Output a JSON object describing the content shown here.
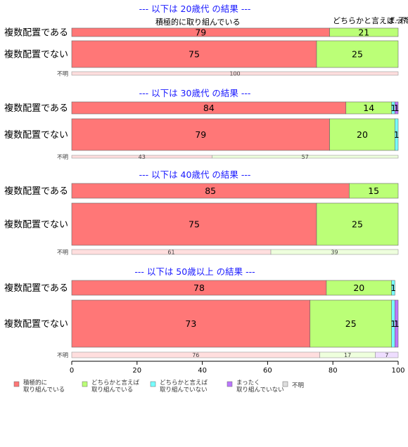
{
  "chart_data": {
    "type": "bar",
    "orientation": "horizontal",
    "stacked": true,
    "xlim": [
      0,
      100
    ],
    "x_ticks": [
      "0",
      "20",
      "40",
      "60",
      "80",
      "100"
    ],
    "top_labels": [
      "積極的に取り組んでいる",
      "どちらかと言えば...",
      "まった...",
      "不明"
    ],
    "legend": {
      "placement": "bottom",
      "items": [
        {
          "line1": "積極的に",
          "line2": "取り組んでいる",
          "color": "#ff7777"
        },
        {
          "line1": "どちらかと言えば",
          "line2": "取り組んでいる",
          "color": "#bbff77"
        },
        {
          "line1": "どちらかと言えば",
          "line2": "取り組んでいない",
          "color": "#77ffff"
        },
        {
          "line1": "まったく",
          "line2": "取り組んでいない",
          "color": "#bb77ff"
        },
        {
          "line1": "不明",
          "line2": "",
          "color": "#dddddd"
        }
      ]
    },
    "panels": [
      {
        "title": "--- 以下は 20歳代 の結果 ---",
        "rows": [
          {
            "label": "複数配置である",
            "values": [
              79,
              21,
              0,
              0,
              0
            ],
            "value_labels": [
              "79",
              "21",
              "",
              "",
              ""
            ]
          },
          {
            "label": "複数配置でない",
            "values": [
              75,
              25,
              0,
              0,
              0
            ],
            "value_labels": [
              "75",
              "25",
              "",
              "",
              ""
            ]
          },
          {
            "label": "不明",
            "values": [
              100,
              0,
              0,
              0,
              0
            ],
            "value_labels": [
              "100",
              "",
              "",
              "",
              ""
            ]
          }
        ]
      },
      {
        "title": "--- 以下は 30歳代 の結果 ---",
        "rows": [
          {
            "label": "複数配置である",
            "values": [
              84,
              14,
              1,
              1,
              0
            ],
            "value_labels": [
              "84",
              "14",
              "1",
              "1",
              ""
            ]
          },
          {
            "label": "複数配置でない",
            "values": [
              79,
              20,
              1,
              0,
              0
            ],
            "value_labels": [
              "79",
              "20",
              "1",
              "",
              ""
            ]
          },
          {
            "label": "不明",
            "values": [
              43,
              57,
              0,
              0,
              0
            ],
            "value_labels": [
              "43",
              "57",
              "",
              "",
              ""
            ]
          }
        ]
      },
      {
        "title": "--- 以下は 40歳代 の結果 ---",
        "rows": [
          {
            "label": "複数配置である",
            "values": [
              85,
              15,
              0,
              0,
              0
            ],
            "value_labels": [
              "85",
              "15",
              "",
              "",
              ""
            ]
          },
          {
            "label": "複数配置でない",
            "values": [
              75,
              25,
              0,
              0,
              0
            ],
            "value_labels": [
              "75",
              "25",
              "",
              "",
              ""
            ]
          },
          {
            "label": "不明",
            "values": [
              61,
              39,
              0,
              0,
              0
            ],
            "value_labels": [
              "61",
              "39",
              "",
              "",
              ""
            ]
          }
        ]
      },
      {
        "title": "--- 以下は 50歳以上 の結果 ---",
        "rows": [
          {
            "label": "複数配置である",
            "values": [
              78,
              20,
              1,
              0,
              0
            ],
            "value_labels": [
              "78",
              "20",
              "1",
              "",
              ""
            ]
          },
          {
            "label": "複数配置でない",
            "values": [
              73,
              25,
              1,
              1,
              0
            ],
            "value_labels": [
              "73",
              "25",
              "1",
              "1",
              ""
            ]
          },
          {
            "label": "不明",
            "values": [
              76,
              17,
              0,
              7,
              0
            ],
            "value_labels": [
              "76",
              "17",
              "",
              "7",
              ""
            ]
          }
        ]
      }
    ]
  }
}
